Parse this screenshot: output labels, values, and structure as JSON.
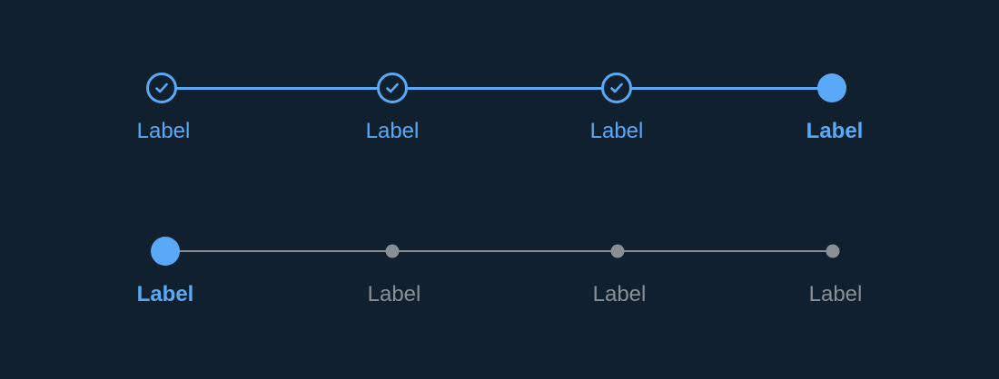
{
  "colors": {
    "background": "#10202f",
    "accent": "#5aa9f7",
    "inactive": "#8a8f96"
  },
  "stepper_completed": {
    "steps": [
      {
        "label": "Label",
        "state": "completed",
        "icon": "check-icon"
      },
      {
        "label": "Label",
        "state": "completed",
        "icon": "check-icon"
      },
      {
        "label": "Label",
        "state": "completed",
        "icon": "check-icon"
      },
      {
        "label": "Label",
        "state": "current",
        "icon": "current-dot-icon"
      }
    ]
  },
  "stepper_upcoming": {
    "steps": [
      {
        "label": "Label",
        "state": "current",
        "icon": "current-dot-icon"
      },
      {
        "label": "Label",
        "state": "upcoming",
        "icon": "upcoming-dot-icon"
      },
      {
        "label": "Label",
        "state": "upcoming",
        "icon": "upcoming-dot-icon"
      },
      {
        "label": "Label",
        "state": "upcoming",
        "icon": "upcoming-dot-icon"
      }
    ]
  }
}
